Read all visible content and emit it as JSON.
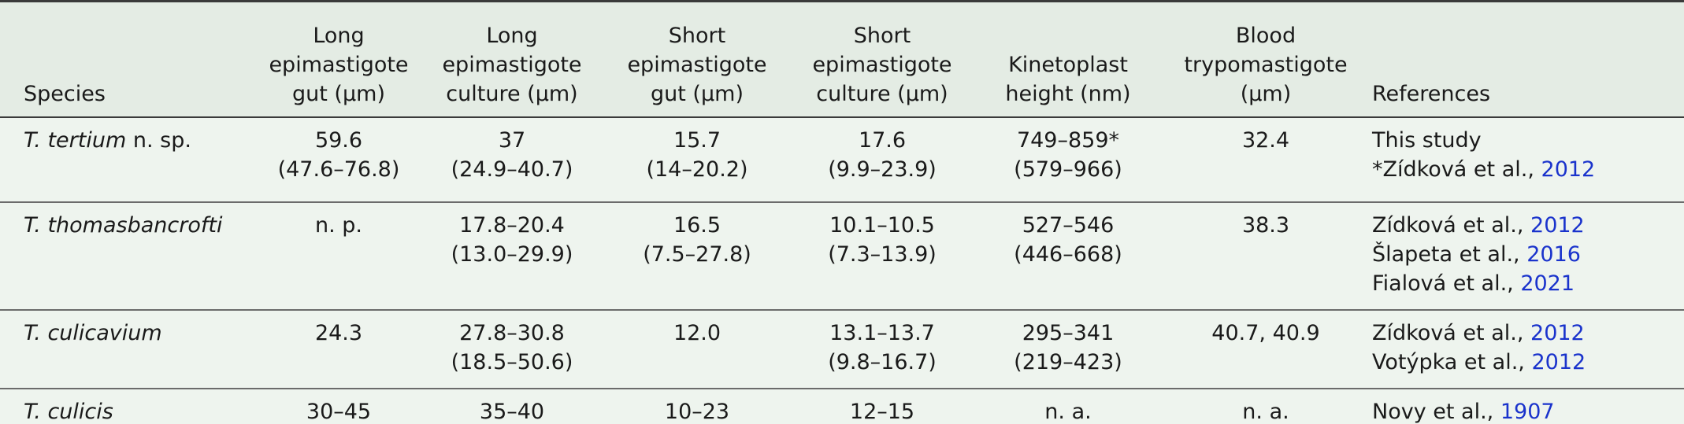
{
  "header": {
    "species": "Species",
    "long_gut": [
      "Long",
      "epimastigote",
      "gut (μm)"
    ],
    "long_culture": [
      "Long",
      "epimastigote",
      "culture (μm)"
    ],
    "short_gut": [
      "Short",
      "epimastigote",
      "gut (μm)"
    ],
    "short_culture": [
      "Short",
      "epimastigote",
      "culture (μm)"
    ],
    "kinetoplast": [
      "Kinetoplast",
      "height (nm)"
    ],
    "blood": [
      "Blood",
      "trypomastigote",
      "(μm)"
    ],
    "references": "References"
  },
  "rows": [
    {
      "species_italic": "T. tertium",
      "species_suffix": " n. sp.",
      "long_gut": [
        "59.6",
        "(47.6–76.8)"
      ],
      "long_culture": [
        "37",
        "(24.9–40.7)"
      ],
      "short_gut": [
        "15.7",
        "(14–20.2)"
      ],
      "short_culture": [
        "17.6",
        "(9.9–23.9)"
      ],
      "kinetoplast": [
        "749–859*",
        "(579–966)"
      ],
      "blood": [
        "32.4"
      ],
      "refs": [
        {
          "text": "This study",
          "year": ""
        },
        {
          "text": "*Zídková et al., ",
          "year": "2012"
        }
      ]
    },
    {
      "species_italic": "T. thomasbancrofti",
      "species_suffix": "",
      "long_gut": [
        "n. p."
      ],
      "long_culture": [
        "17.8–20.4",
        "(13.0–29.9)"
      ],
      "short_gut": [
        "16.5",
        "(7.5–27.8)"
      ],
      "short_culture": [
        "10.1–10.5",
        "(7.3–13.9)"
      ],
      "kinetoplast": [
        "527–546",
        "(446–668)"
      ],
      "blood": [
        "38.3"
      ],
      "refs": [
        {
          "text": "Zídková et al., ",
          "year": "2012"
        },
        {
          "text": "Šlapeta et al., ",
          "year": "2016"
        },
        {
          "text": "Fialová et al., ",
          "year": "2021"
        }
      ]
    },
    {
      "species_italic": "T. culicavium",
      "species_suffix": "",
      "long_gut": [
        "24.3"
      ],
      "long_culture": [
        "27.8–30.8",
        "(18.5–50.6)"
      ],
      "short_gut": [
        "12.0"
      ],
      "short_culture": [
        "13.1–13.7",
        "(9.8–16.7)"
      ],
      "kinetoplast": [
        "295–341",
        "(219–423)"
      ],
      "blood": [
        "40.7, 40.9"
      ],
      "refs": [
        {
          "text": "Zídková et al., ",
          "year": "2012"
        },
        {
          "text": "Votýpka et al., ",
          "year": "2012"
        }
      ]
    },
    {
      "species_italic": "T. culicis",
      "species_suffix": "",
      "long_gut": [
        "30–45"
      ],
      "long_culture": [
        "35–40"
      ],
      "short_gut": [
        "10–23"
      ],
      "short_culture": [
        "12–15"
      ],
      "kinetoplast": [
        "n. a."
      ],
      "blood": [
        "n. a."
      ],
      "refs": [
        {
          "text": "Novy et al., ",
          "year": "1907"
        }
      ]
    }
  ],
  "colors": {
    "header_bg": "#e4ece4",
    "body_bg": "#eef4ee",
    "link": "#1a33cc",
    "rule": "#3a3a3a"
  }
}
